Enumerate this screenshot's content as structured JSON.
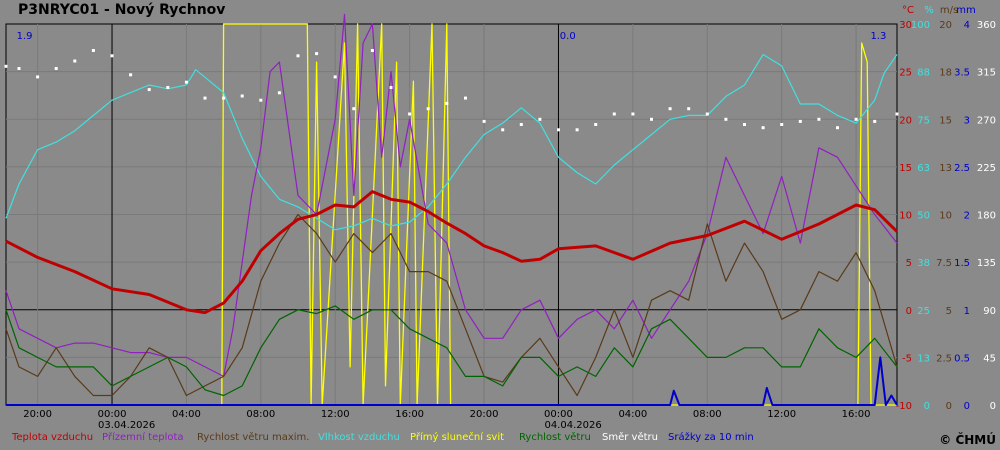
{
  "title": "P3NRYC01 - Nový Rychnov",
  "copyright": "© ČHMÚ",
  "chart_data": {
    "type": "line",
    "time_ticks": [
      "20:00",
      "00:00",
      "04:00",
      "08:00",
      "12:00",
      "16:00",
      "20:00",
      "00:00",
      "04:00",
      "08:00",
      "12:00",
      "16:00"
    ],
    "date_labels": [
      "03.04.2026",
      "04.04.2026"
    ],
    "x_range_hours": [
      -5.7,
      42.2
    ],
    "units": [
      "°C",
      "%",
      "m/s",
      "mm",
      ""
    ],
    "right_axes": [
      {
        "name": "°C",
        "color": "#c00000",
        "ticks": [
          "30",
          "25",
          "20",
          "15",
          "10",
          "5",
          "0",
          "-5",
          "-10"
        ]
      },
      {
        "name": "%",
        "color": "#40e0e0",
        "ticks": [
          "100",
          "88",
          "75",
          "63",
          "50",
          "38",
          "25",
          "13",
          "0"
        ]
      },
      {
        "name": "m/s",
        "color": "#5a3a1a",
        "ticks": [
          "20",
          "18",
          "15",
          "13",
          "10",
          "7.5",
          "5",
          "2.5",
          "0"
        ]
      },
      {
        "name": "mm",
        "color": "#0000cc",
        "ticks": [
          "4",
          "3.5",
          "3",
          "2.5",
          "2",
          "1.5",
          "1",
          "0.5",
          "0"
        ]
      },
      {
        "name": "",
        "color": "#ffffff",
        "ticks": [
          "360",
          "315",
          "270",
          "225",
          "180",
          "135",
          "90",
          "45",
          "0"
        ]
      }
    ],
    "annotations": [
      {
        "text": "1.9",
        "x": -4.7
      },
      {
        "text": "0.0",
        "x": 24.5
      },
      {
        "text": "1.3",
        "x": 41.2
      }
    ],
    "temperature_c": {
      "x": [
        -5.7,
        -4,
        -2,
        0,
        2,
        4,
        5,
        6,
        7,
        8,
        9,
        10,
        11,
        12,
        13,
        14,
        15,
        16,
        17,
        18,
        19,
        20,
        21,
        22,
        23,
        24,
        26,
        28,
        30,
        32,
        34,
        36,
        38,
        40,
        41,
        42.2
      ],
      "y": [
        7.2,
        5.5,
        4,
        2.2,
        1.6,
        0,
        -0.3,
        0.7,
        3,
        6.2,
        8,
        9.5,
        10,
        11,
        10.8,
        12.4,
        11.6,
        11.3,
        10.3,
        9.1,
        8,
        6.7,
        6,
        5.1,
        5.3,
        6.4,
        6.7,
        5.3,
        7,
        7.8,
        9.3,
        7.4,
        9,
        11,
        10.5,
        8.2
      ]
    },
    "ground_temperature_c": {
      "x": [
        -5.7,
        -5,
        -4,
        -3,
        -2,
        -1,
        0,
        1,
        2,
        3,
        4,
        5,
        6,
        6.5,
        7,
        7.5,
        8,
        8.5,
        9,
        10,
        11,
        12,
        12.5,
        13,
        13.5,
        14,
        14.5,
        15,
        15.5,
        16,
        17,
        18,
        19,
        20,
        21,
        22,
        23,
        24,
        25,
        26,
        27,
        28,
        29,
        30,
        31,
        32,
        33,
        34,
        35,
        36,
        37,
        38,
        39,
        40,
        41,
        42.2
      ],
      "y": [
        2,
        -2,
        -3,
        -4,
        -3.5,
        -3.5,
        -4,
        -4.5,
        -4.5,
        -5,
        -5,
        -6,
        -7,
        -2,
        5,
        12,
        17,
        25,
        26,
        12,
        10,
        20,
        31,
        12,
        28,
        30,
        16,
        25,
        15,
        20,
        9,
        7,
        0,
        -3,
        -3,
        0,
        1,
        -3,
        -1,
        0,
        -2,
        1,
        -3,
        0,
        3,
        8,
        16,
        12,
        8,
        14,
        7,
        17,
        16,
        13,
        10,
        7
      ]
    },
    "max_wind_speed_ms": {
      "x": [
        -5.7,
        -5,
        -4,
        -3,
        -2,
        -1,
        0,
        1,
        2,
        3,
        4,
        5,
        6,
        7,
        8,
        9,
        10,
        11,
        12,
        13,
        14,
        15,
        16,
        17,
        18,
        19,
        20,
        21,
        22,
        23,
        24,
        25,
        26,
        27,
        28,
        29,
        30,
        31,
        32,
        33,
        34,
        35,
        36,
        37,
        38,
        39,
        40,
        41,
        42.2
      ],
      "y": [
        4,
        2,
        1.5,
        3,
        1.5,
        0.5,
        0.5,
        1.5,
        3,
        2.5,
        0.5,
        1,
        1.5,
        3,
        6.5,
        8.5,
        10,
        9,
        7.5,
        9,
        8,
        9,
        7,
        7,
        6.5,
        4,
        1.5,
        1.2,
        2.5,
        3.5,
        2,
        0.5,
        2.5,
        5,
        2.5,
        5.5,
        6,
        5.5,
        9.5,
        6.5,
        8.5,
        7,
        4.5,
        5,
        7,
        6.5,
        8,
        6,
        2
      ]
    },
    "relative_humidity_pct": {
      "x": [
        -5.7,
        -5,
        -4,
        -3,
        -2,
        -1,
        0,
        1,
        2,
        3,
        4,
        4.5,
        5,
        6,
        7,
        8,
        9,
        10,
        11,
        12,
        13,
        14,
        15,
        16,
        17,
        18,
        19,
        20,
        21,
        22,
        23,
        24,
        25,
        26,
        27,
        28,
        29,
        30,
        31,
        32,
        33,
        34,
        35,
        36,
        37,
        38,
        39,
        40,
        41,
        41.5,
        42.2
      ],
      "y": [
        49,
        58,
        67,
        69,
        72,
        76,
        80,
        82,
        84,
        83,
        84,
        88,
        86,
        82,
        70,
        60,
        54,
        52,
        49,
        46,
        47,
        49,
        47,
        48,
        52,
        58,
        65,
        71,
        74,
        78,
        74,
        65,
        61,
        58,
        63,
        67,
        71,
        75,
        76,
        76,
        81,
        84,
        92,
        89,
        79,
        79,
        76,
        74,
        80,
        87,
        92
      ]
    },
    "sunshine": {
      "x": [
        -5.7,
        5.9,
        6,
        10.5,
        10.7,
        11,
        11.3,
        12.5,
        12.8,
        13.2,
        13.5,
        14.5,
        14.7,
        15.3,
        15.5,
        16.2,
        16.4,
        17.2,
        17.5,
        18,
        18.2,
        40.1,
        40.3,
        40.6,
        40.8,
        42.2
      ],
      "y": [
        0,
        0,
        100,
        100,
        0,
        90,
        0,
        95,
        10,
        100,
        0,
        100,
        5,
        90,
        0,
        85,
        0,
        100,
        0,
        100,
        0,
        0,
        95,
        90,
        0,
        0
      ]
    },
    "wind_speed_ms": {
      "x": [
        -5.7,
        -5,
        -4,
        -3,
        -2,
        -1,
        0,
        1,
        2,
        3,
        4,
        5,
        6,
        7,
        8,
        9,
        10,
        11,
        12,
        13,
        14,
        15,
        16,
        17,
        18,
        19,
        20,
        21,
        22,
        23,
        24,
        25,
        26,
        27,
        28,
        29,
        30,
        31,
        32,
        33,
        34,
        35,
        36,
        37,
        38,
        39,
        40,
        41,
        42.2
      ],
      "y": [
        5,
        3,
        2.5,
        2,
        2,
        2,
        1,
        1.5,
        2,
        2.5,
        2,
        0.8,
        0.5,
        1,
        3,
        4.5,
        5,
        4.8,
        5.2,
        4.5,
        5,
        5,
        4,
        3.5,
        3,
        1.5,
        1.5,
        1,
        2.5,
        2.5,
        1.5,
        2,
        1.5,
        3,
        2,
        4,
        4.5,
        3.5,
        2.5,
        2.5,
        3,
        3,
        2,
        2,
        4,
        3,
        2.5,
        3.5,
        2
      ]
    },
    "wind_direction_deg": {
      "x": [
        -5.7,
        -5,
        -4,
        -3,
        -2,
        -1,
        0,
        1,
        2,
        3,
        4,
        5,
        6,
        7,
        8,
        9,
        10,
        11,
        12,
        13,
        14,
        15,
        16,
        17,
        18,
        19,
        20,
        21,
        22,
        23,
        24,
        25,
        26,
        27,
        28,
        29,
        30,
        31,
        32,
        33,
        34,
        35,
        36,
        37,
        38,
        39,
        40,
        41,
        42.2
      ],
      "y": [
        320,
        318,
        310,
        318,
        325,
        335,
        330,
        312,
        298,
        300,
        305,
        290,
        290,
        292,
        288,
        295,
        330,
        332,
        310,
        280,
        335,
        300,
        275,
        280,
        285,
        290,
        268,
        260,
        265,
        270,
        260,
        260,
        265,
        275,
        275,
        270,
        280,
        280,
        275,
        270,
        265,
        262,
        265,
        268,
        270,
        262,
        270,
        268,
        275
      ]
    },
    "precip_10min_mm": {
      "x": [
        -5.7,
        30,
        30.2,
        30.5,
        35,
        35.2,
        35.5,
        41,
        41.3,
        41.6,
        41.9,
        42.2
      ],
      "y": [
        0,
        0,
        0.15,
        0,
        0,
        0.18,
        0,
        0,
        0.5,
        0,
        0.1,
        0
      ]
    },
    "legend": [
      {
        "name": "Teplota vzduchu",
        "color": "#c00000"
      },
      {
        "name": "Přízemní teplota",
        "color": "#9020c0"
      },
      {
        "name": "Rychlost větru maxim.",
        "color": "#5a3a1a"
      },
      {
        "name": "Vlhkost vzduchu",
        "color": "#40e0e0"
      },
      {
        "name": "Přímý sluneční svit",
        "color": "#ffff00"
      },
      {
        "name": "Rychlost větru",
        "color": "#006400"
      },
      {
        "name": "Směr větru",
        "color": "#ffffff"
      },
      {
        "name": "Srážky za 10 min",
        "color": "#0000cc"
      }
    ]
  }
}
